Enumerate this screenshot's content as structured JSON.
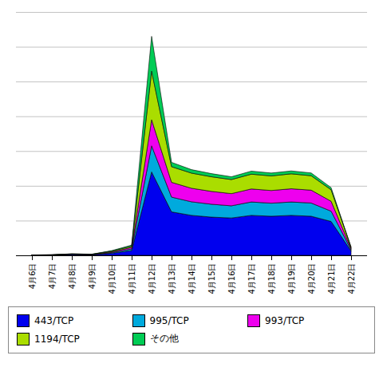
{
  "chart_data": {
    "type": "area",
    "stacked": true,
    "categories": [
      "4月6日",
      "4月7日",
      "4月8日",
      "4月9日",
      "4月10日",
      "4月11日",
      "4月12日",
      "4月13日",
      "4月14日",
      "4月15日",
      "4月16日",
      "4月17日",
      "4月18日",
      "4月19日",
      "4月20日",
      "4月21日",
      "4月22日"
    ],
    "series": [
      {
        "name": "443/TCP",
        "color": "#0000EE",
        "values": [
          10,
          15,
          50,
          30,
          120,
          280,
          4800,
          2500,
          2300,
          2200,
          2150,
          2300,
          2250,
          2300,
          2250,
          1950,
          250
        ]
      },
      {
        "name": "995/TCP",
        "color": "#00AADD",
        "values": [
          3,
          5,
          10,
          10,
          40,
          90,
          1500,
          850,
          780,
          740,
          700,
          770,
          750,
          770,
          760,
          590,
          70
        ]
      },
      {
        "name": "993/TCP",
        "color": "#EE00EE",
        "values": [
          3,
          5,
          10,
          10,
          40,
          90,
          1500,
          850,
          780,
          740,
          700,
          750,
          730,
          760,
          740,
          570,
          65
        ]
      },
      {
        "name": "1194/TCP",
        "color": "#AADD00",
        "values": [
          3,
          5,
          10,
          10,
          40,
          70,
          2800,
          900,
          870,
          840,
          810,
          850,
          840,
          860,
          830,
          660,
          70
        ]
      },
      {
        "name": "その他",
        "color": "#00CC55",
        "values": [
          2,
          3,
          8,
          6,
          30,
          60,
          2000,
          250,
          200,
          180,
          160,
          175,
          165,
          165,
          160,
          125,
          15
        ]
      }
    ],
    "ylim": [
      0,
      14000
    ],
    "yticks": [
      0,
      2000,
      4000,
      6000,
      8000,
      10000,
      12000,
      14000
    ],
    "grid": true,
    "tick_labels": "x",
    "legend": "bottom"
  }
}
